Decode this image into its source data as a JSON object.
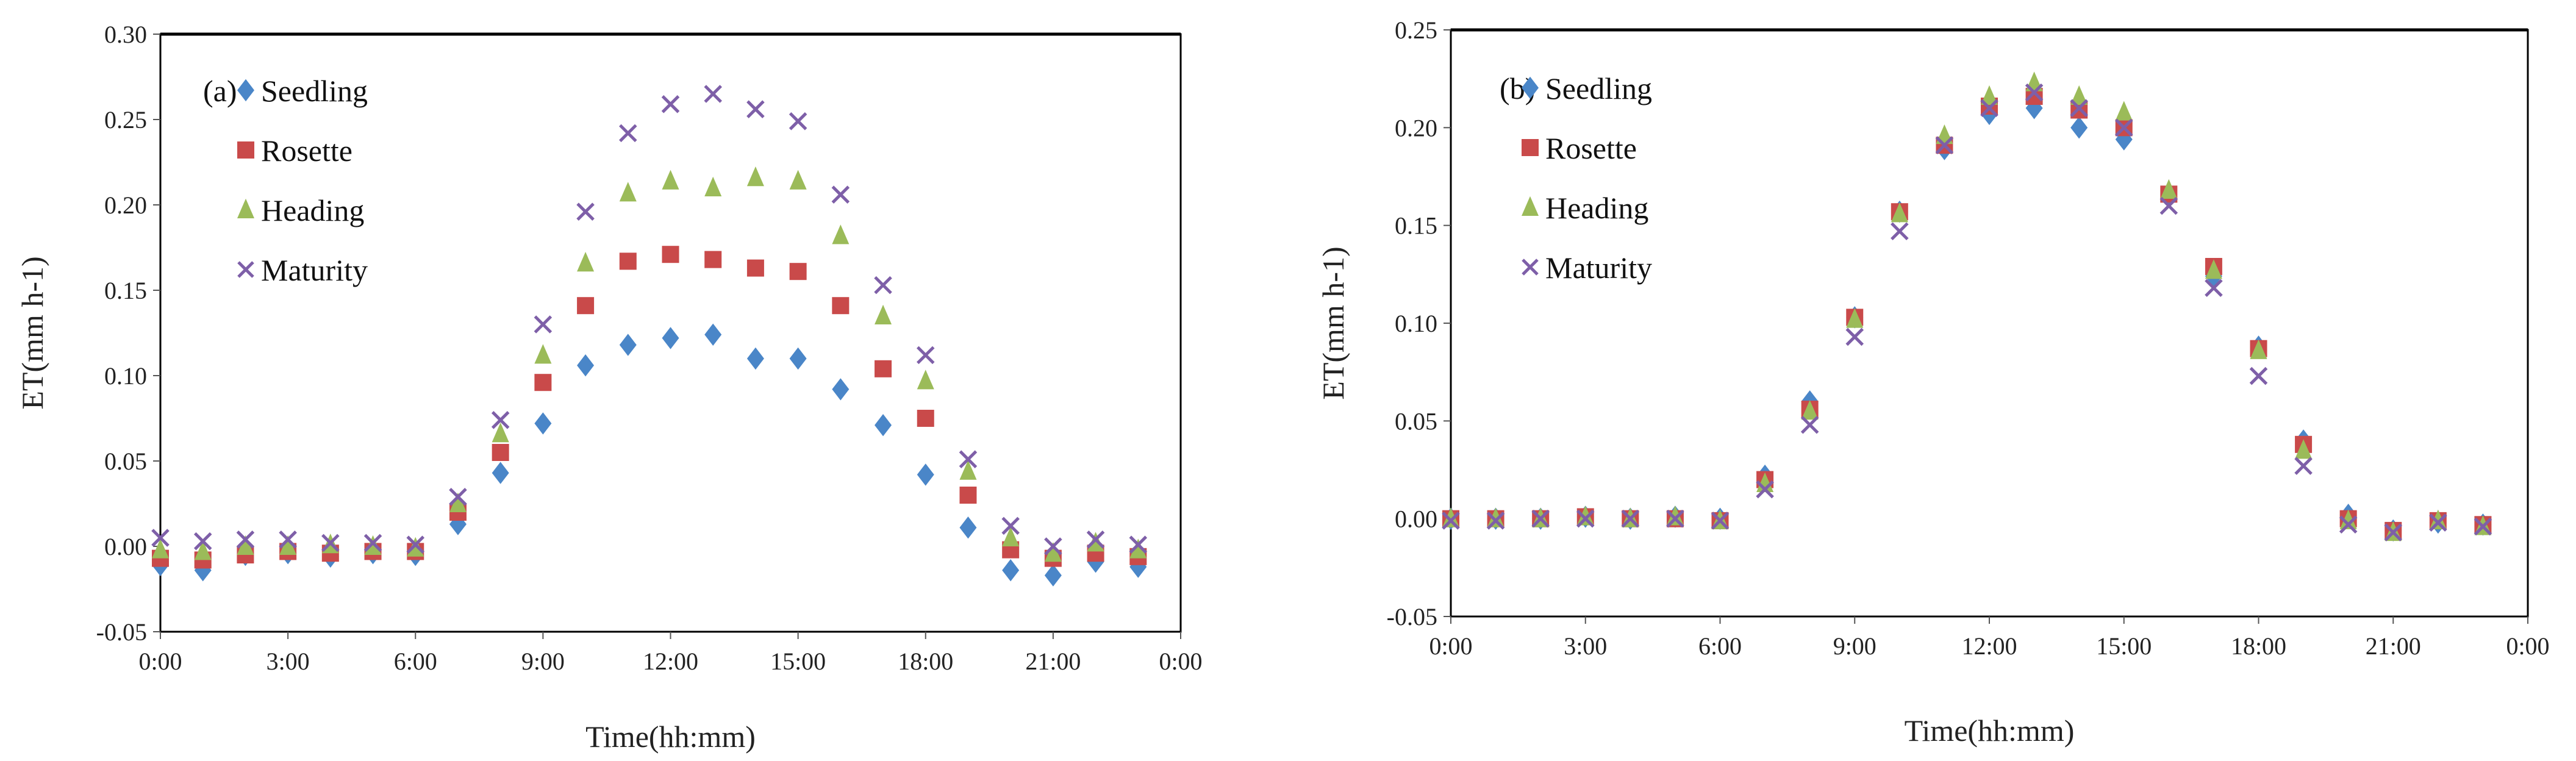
{
  "chart_data": [
    {
      "type": "scatter",
      "panel_label": "(a)",
      "xlabel": "Time(hh:mm)",
      "ylabel": "ET(mm h-1)",
      "xlim": [
        0,
        24
      ],
      "ylim": [
        -0.05,
        0.3
      ],
      "xticks": [
        "0:00",
        "3:00",
        "6:00",
        "9:00",
        "12:00",
        "15:00",
        "18:00",
        "21:00",
        "0:00"
      ],
      "yticks": [
        "-0.05",
        "0.00",
        "0.05",
        "0.10",
        "0.15",
        "0.20",
        "0.25",
        "0.30"
      ],
      "legend": "top-left",
      "grid": false,
      "x": [
        0,
        1,
        2,
        3,
        4,
        5,
        6,
        7,
        8,
        9,
        10,
        11,
        12,
        13,
        14,
        15,
        16,
        17,
        18,
        19,
        20,
        21,
        22,
        23
      ],
      "series": [
        {
          "name": "Seedling",
          "marker": "diamond",
          "color": "#4a86c8",
          "values": [
            -0.011,
            -0.014,
            -0.005,
            -0.004,
            -0.006,
            -0.004,
            -0.005,
            0.013,
            0.043,
            0.072,
            0.106,
            0.118,
            0.122,
            0.124,
            0.11,
            0.11,
            0.092,
            0.071,
            0.042,
            0.011,
            -0.014,
            -0.017,
            -0.009,
            -0.012
          ]
        },
        {
          "name": "Rosette",
          "marker": "square",
          "color": "#c94a4a",
          "values": [
            -0.007,
            -0.008,
            -0.005,
            -0.003,
            -0.004,
            -0.003,
            -0.003,
            0.02,
            0.055,
            0.096,
            0.141,
            0.167,
            0.171,
            0.168,
            0.163,
            0.161,
            0.141,
            0.104,
            0.075,
            0.03,
            -0.002,
            -0.007,
            -0.004,
            -0.006
          ]
        },
        {
          "name": "Heading",
          "marker": "triangle",
          "color": "#9bbb59",
          "values": [
            -0.002,
            -0.003,
            0.0,
            0.0,
            0.001,
            0.0,
            -0.001,
            0.025,
            0.066,
            0.112,
            0.166,
            0.207,
            0.214,
            0.21,
            0.216,
            0.214,
            0.182,
            0.135,
            0.097,
            0.044,
            0.005,
            -0.004,
            0.002,
            -0.002
          ]
        },
        {
          "name": "Maturity",
          "marker": "x",
          "color": "#7e5fa8",
          "values": [
            0.005,
            0.003,
            0.004,
            0.004,
            0.002,
            0.002,
            0.001,
            0.029,
            0.074,
            0.13,
            0.196,
            0.242,
            0.259,
            0.265,
            0.256,
            0.249,
            0.206,
            0.153,
            0.112,
            0.051,
            0.012,
            0.0,
            0.004,
            0.001
          ]
        }
      ]
    },
    {
      "type": "scatter",
      "panel_label": "(b)",
      "xlabel": "Time(hh:mm)",
      "ylabel": "ET(mm h-1)",
      "xlim": [
        0,
        24
      ],
      "ylim": [
        -0.05,
        0.25
      ],
      "xticks": [
        "0:00",
        "3:00",
        "6:00",
        "9:00",
        "12:00",
        "15:00",
        "18:00",
        "21:00",
        "0:00"
      ],
      "yticks": [
        "-0.05",
        "0.00",
        "0.05",
        "0.10",
        "0.15",
        "0.20",
        "0.25"
      ],
      "legend": "top-left",
      "grid": false,
      "x": [
        0,
        1,
        2,
        3,
        4,
        5,
        6,
        7,
        8,
        9,
        10,
        11,
        12,
        13,
        14,
        15,
        16,
        17,
        18,
        19,
        20,
        21,
        22,
        23
      ],
      "series": [
        {
          "name": "Seedling",
          "marker": "diamond",
          "color": "#4a86c8",
          "values": [
            0,
            0,
            0,
            0.001,
            0,
            0.001,
            0,
            0.022,
            0.06,
            0.103,
            0.157,
            0.189,
            0.207,
            0.21,
            0.2,
            0.194,
            0.166,
            0.124,
            0.088,
            0.04,
            0.002,
            -0.006,
            -0.002,
            -0.003
          ]
        },
        {
          "name": "Rosette",
          "marker": "square",
          "color": "#c94a4a",
          "values": [
            0,
            0,
            0,
            0.001,
            0,
            0,
            -0.001,
            0.02,
            0.056,
            0.103,
            0.157,
            0.191,
            0.211,
            0.216,
            0.209,
            0.2,
            0.166,
            0.129,
            0.087,
            0.038,
            0,
            -0.006,
            -0.001,
            -0.003
          ]
        },
        {
          "name": "Heading",
          "marker": "triangle",
          "color": "#9bbb59",
          "values": [
            0,
            0,
            0,
            0.001,
            0,
            0.001,
            -0.001,
            0.018,
            0.055,
            0.102,
            0.156,
            0.196,
            0.216,
            0.223,
            0.216,
            0.208,
            0.168,
            0.127,
            0.086,
            0.035,
            -0.001,
            -0.007,
            -0.001,
            -0.004
          ]
        },
        {
          "name": "Maturity",
          "marker": "x",
          "color": "#7e5fa8",
          "values": [
            -0.001,
            -0.001,
            0,
            0,
            0,
            0,
            -0.001,
            0.015,
            0.048,
            0.093,
            0.147,
            0.191,
            0.21,
            0.218,
            0.21,
            0.2,
            0.16,
            0.118,
            0.073,
            0.027,
            -0.003,
            -0.007,
            -0.002,
            -0.004
          ]
        }
      ]
    }
  ]
}
